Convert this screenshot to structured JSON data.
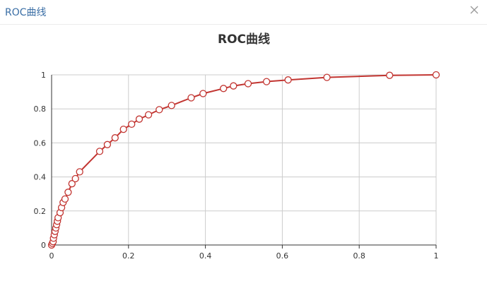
{
  "window": {
    "title": "ROC曲线",
    "close_icon": "close-icon"
  },
  "colors": {
    "series": "#c23531",
    "grid": "#cccccc",
    "axis": "#333333",
    "window_title": "#3a6ea5"
  },
  "chart_data": {
    "type": "line",
    "title": "ROC曲线",
    "xlabel": "",
    "ylabel": "",
    "xlim": [
      0,
      1
    ],
    "ylim": [
      0,
      1
    ],
    "x_ticks": [
      "0",
      "0.2",
      "0.4",
      "0.6",
      "0.8",
      "1"
    ],
    "y_ticks": [
      "0",
      "0.2",
      "0.4",
      "0.6",
      "0.8",
      "1"
    ],
    "grid": true,
    "series": [
      {
        "marker": "circle",
        "points": [
          [
            0,
            0
          ],
          [
            0.002,
            0.01
          ],
          [
            0.004,
            0.02
          ],
          [
            0.005,
            0.04
          ],
          [
            0.007,
            0.06
          ],
          [
            0.009,
            0.08
          ],
          [
            0.011,
            0.1
          ],
          [
            0.013,
            0.12
          ],
          [
            0.015,
            0.14
          ],
          [
            0.017,
            0.16
          ],
          [
            0.022,
            0.19
          ],
          [
            0.026,
            0.22
          ],
          [
            0.03,
            0.25
          ],
          [
            0.035,
            0.27
          ],
          [
            0.043,
            0.31
          ],
          [
            0.053,
            0.36
          ],
          [
            0.062,
            0.39
          ],
          [
            0.073,
            0.43
          ],
          [
            0.125,
            0.55
          ],
          [
            0.145,
            0.59
          ],
          [
            0.165,
            0.63
          ],
          [
            0.187,
            0.68
          ],
          [
            0.208,
            0.71
          ],
          [
            0.228,
            0.74
          ],
          [
            0.252,
            0.765
          ],
          [
            0.28,
            0.795
          ],
          [
            0.312,
            0.82
          ],
          [
            0.363,
            0.865
          ],
          [
            0.394,
            0.89
          ],
          [
            0.447,
            0.92
          ],
          [
            0.473,
            0.935
          ],
          [
            0.511,
            0.948
          ],
          [
            0.559,
            0.96
          ],
          [
            0.615,
            0.97
          ],
          [
            0.716,
            0.985
          ],
          [
            0.879,
            0.997
          ],
          [
            1,
            1
          ]
        ]
      }
    ]
  }
}
